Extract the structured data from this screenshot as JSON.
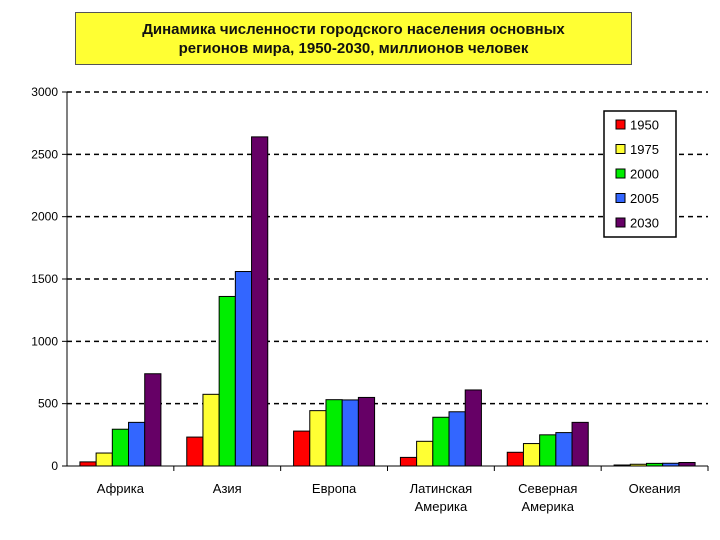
{
  "chart_data": {
    "type": "bar",
    "title_lines": [
      "Динамика численности городского населения основных",
      "регионов мира, 1950-2030, миллионов человек"
    ],
    "categories": [
      [
        "Африка"
      ],
      [
        "Азия"
      ],
      [
        "Европа"
      ],
      [
        "Латинская",
        "Америка"
      ],
      [
        "Северная",
        "Америка"
      ],
      [
        "Океания"
      ]
    ],
    "series": [
      {
        "name": "1950",
        "color": "#ff0000",
        "values": [
          33,
          232,
          280,
          69,
          110,
          8
        ]
      },
      {
        "name": "1975",
        "color": "#ffff33",
        "values": [
          104,
          575,
          444,
          198,
          180,
          14
        ]
      },
      {
        "name": "2000",
        "color": "#00ee00",
        "values": [
          295,
          1360,
          532,
          391,
          250,
          21
        ]
      },
      {
        "name": "2005",
        "color": "#3366ff",
        "values": [
          350,
          1560,
          530,
          435,
          268,
          22
        ]
      },
      {
        "name": "2030",
        "color": "#660066",
        "values": [
          740,
          2640,
          550,
          610,
          350,
          28
        ]
      }
    ],
    "yticks": [
      0,
      500,
      1000,
      1500,
      2000,
      2500,
      3000
    ],
    "ylim": [
      0,
      3000
    ],
    "grid": true,
    "legend_position": "top-right"
  }
}
